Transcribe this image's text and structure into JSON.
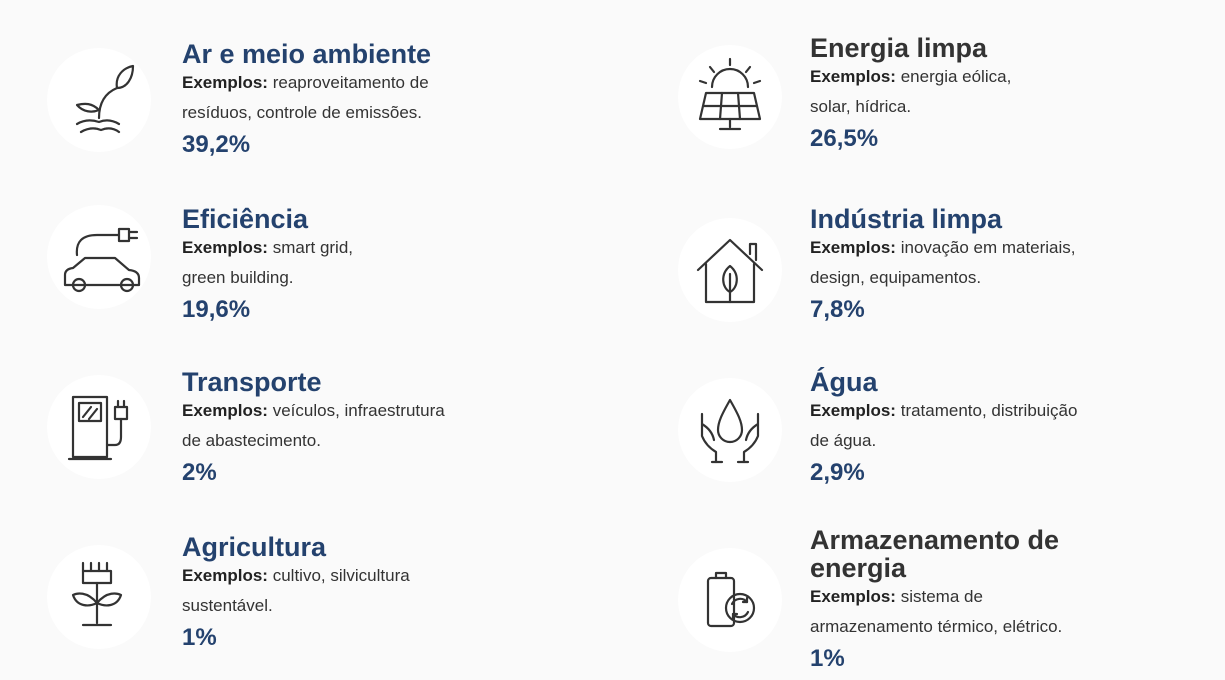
{
  "items": [
    {
      "title": "Ar e meio ambiente",
      "title_color": "#24426e",
      "label": "Exemplos:",
      "lines": [
        "reaproveitamento de",
        "resíduos, controle de emissões."
      ],
      "percent": "39,2%"
    },
    {
      "title": "Eficiência",
      "title_color": "#24426e",
      "label": "Exemplos:",
      "lines": [
        "smart grid,",
        "green building."
      ],
      "percent": "19,6%"
    },
    {
      "title": "Transporte",
      "title_color": "#24426e",
      "label": "Exemplos:",
      "lines": [
        "veículos, infraestrutura",
        "de abastecimento."
      ],
      "percent": "2%"
    },
    {
      "title": "Agricultura",
      "title_color": "#24426e",
      "label": "Exemplos:",
      "lines": [
        "cultivo, silvicultura",
        "sustentável."
      ],
      "percent": "1%"
    },
    {
      "title": "Energia limpa",
      "title_color": "#333333",
      "label": "Exemplos:",
      "lines": [
        "energia eólica,",
        "solar, hídrica."
      ],
      "percent": "26,5%"
    },
    {
      "title": "Indústria limpa",
      "title_color": "#24426e",
      "label": "Exemplos:",
      "lines": [
        "inovação em materiais,",
        "design, equipamentos."
      ],
      "percent": "7,8%"
    },
    {
      "title": "Água",
      "title_color": "#24426e",
      "label": "Exemplos:",
      "lines": [
        "tratamento, distribuição",
        "de água."
      ],
      "percent": "2,9%"
    },
    {
      "title": "Armazenamento de energia",
      "title_color": "#333333",
      "label": "Exemplos:",
      "lines": [
        "sistema de",
        "armazenamento térmico, elétrico."
      ],
      "percent": "1%"
    }
  ]
}
